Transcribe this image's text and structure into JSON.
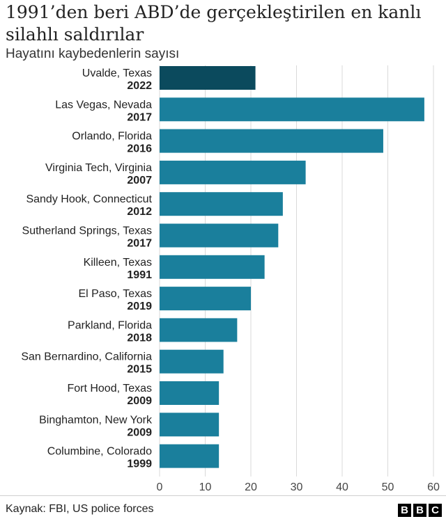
{
  "chart_data": {
    "type": "bar",
    "orientation": "horizontal",
    "title": "1991’den beri ABD’de gerçekleştirilen en kanlı silahlı saldırılar",
    "subtitle": "Hayatını kaybedenlerin sayısı",
    "categories": [
      {
        "place": "Uvalde, Texas",
        "year": "2022"
      },
      {
        "place": "Las Vegas, Nevada",
        "year": "2017"
      },
      {
        "place": "Orlando, Florida",
        "year": "2016"
      },
      {
        "place": "Virginia Tech, Virginia",
        "year": "2007"
      },
      {
        "place": "Sandy Hook, Connecticut",
        "year": "2012"
      },
      {
        "place": "Sutherland Springs, Texas",
        "year": "2017"
      },
      {
        "place": "Killeen, Texas",
        "year": "1991"
      },
      {
        "place": "El Paso, Texas",
        "year": "2019"
      },
      {
        "place": "Parkland, Florida",
        "year": "2018"
      },
      {
        "place": "San Bernardino, California",
        "year": "2015"
      },
      {
        "place": "Fort Hood, Texas",
        "year": "2009"
      },
      {
        "place": "Binghamton, New York",
        "year": "2009"
      },
      {
        "place": "Columbine, Colorado",
        "year": "1999"
      }
    ],
    "values": [
      21,
      58,
      49,
      32,
      27,
      26,
      23,
      20,
      17,
      14,
      13,
      13,
      13
    ],
    "xlim": [
      0,
      60
    ],
    "xticks": [
      0,
      10,
      20,
      30,
      40,
      50,
      60
    ],
    "grid": true,
    "colors": {
      "highlight": "#0b4a5d",
      "default": "#1a7f9c",
      "grid": "#d9d9d9"
    }
  },
  "footer": {
    "source": "Kaynak: FBI, US police forces",
    "logo": [
      "B",
      "B",
      "C"
    ]
  }
}
